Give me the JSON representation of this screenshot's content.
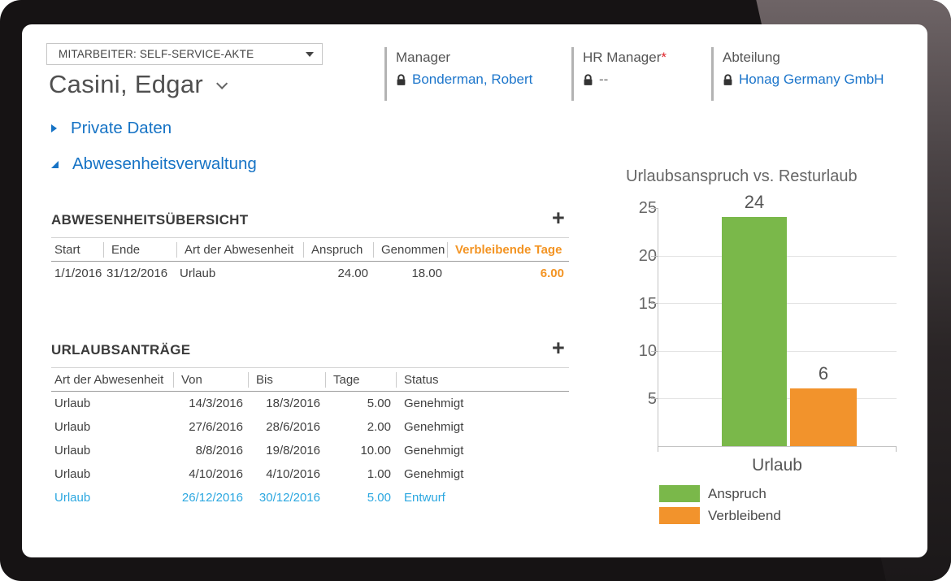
{
  "header": {
    "record_selector": "MITARBEITER: SELF-SERVICE-AKTE",
    "employee_name": "Casini, Edgar",
    "fields": [
      {
        "label": "Manager",
        "required_marker": "",
        "value": "Bonderman, Robert",
        "is_link": true,
        "locked": true
      },
      {
        "label": "HR Manager",
        "required_marker": "*",
        "value": "--",
        "is_link": false,
        "locked": true
      },
      {
        "label": "Abteilung",
        "required_marker": "",
        "value": "Honag Germany GmbH",
        "is_link": true,
        "locked": true
      }
    ]
  },
  "sections": {
    "private_daten": {
      "label": "Private Daten",
      "state": "collapsed"
    },
    "abwesenheitsverwaltung": {
      "label": "Abwesenheitsverwaltung",
      "state": "expanded"
    }
  },
  "absence_overview": {
    "title": "ABWESENHEITSÜBERSICHT",
    "add_button": "+",
    "columns": [
      "Start",
      "Ende",
      "Art der Abwesenheit",
      "Anspruch",
      "Genommen",
      "Verbleibende Tage"
    ],
    "rows": [
      [
        "1/1/2016",
        "31/12/2016",
        "Urlaub",
        "24.00",
        "18.00",
        "6.00"
      ]
    ]
  },
  "vacation_requests": {
    "title": "URLAUBSANTRÄGE",
    "add_button": "+",
    "columns": [
      "Art der Abwesenheit",
      "Von",
      "Bis",
      "Tage",
      "Status"
    ],
    "rows": [
      {
        "cells": [
          "Urlaub",
          "14/3/2016",
          "18/3/2016",
          "5.00",
          "Genehmigt"
        ],
        "draft": false
      },
      {
        "cells": [
          "Urlaub",
          "27/6/2016",
          "28/6/2016",
          "2.00",
          "Genehmigt"
        ],
        "draft": false
      },
      {
        "cells": [
          "Urlaub",
          "8/8/2016",
          "19/8/2016",
          "10.00",
          "Genehmigt"
        ],
        "draft": false
      },
      {
        "cells": [
          "Urlaub",
          "4/10/2016",
          "4/10/2016",
          "1.00",
          "Genehmigt"
        ],
        "draft": false
      },
      {
        "cells": [
          "Urlaub",
          "26/12/2016",
          "30/12/2016",
          "5.00",
          "Entwurf"
        ],
        "draft": true
      }
    ]
  },
  "chart_data": {
    "type": "bar",
    "title": "Urlaubsanspruch vs. Resturlaub",
    "categories": [
      "Urlaub"
    ],
    "series": [
      {
        "name": "Anspruch",
        "values": [
          24
        ],
        "color": "#7ab84a"
      },
      {
        "name": "Verbleibend",
        "values": [
          6
        ],
        "color": "#f2932c"
      }
    ],
    "ylim": [
      0,
      25
    ],
    "ytick_labels": [
      25,
      20,
      15,
      10,
      5
    ],
    "grid": true,
    "legend_position": "bottom-left"
  },
  "colors": {
    "link_blue": "#1d76cb",
    "section_blue": "#1673c5",
    "draft_blue": "#2ba7e0",
    "highlight_orange": "#f39423",
    "bar_green": "#7ab84a",
    "bar_orange": "#f2932c",
    "required_red": "#e0262c"
  }
}
